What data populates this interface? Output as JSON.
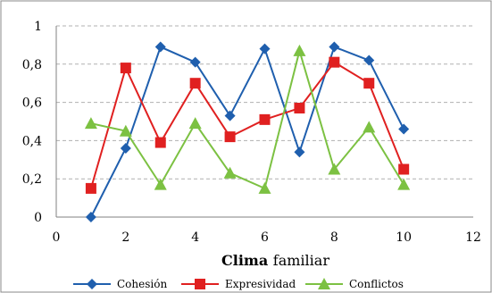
{
  "chart_data": {
    "type": "line",
    "xlabel_bold": "Clima",
    "xlabel_rest": "familiar",
    "xlim": [
      0,
      12
    ],
    "ylim": [
      0,
      1
    ],
    "xticks": [
      "0",
      "2",
      "4",
      "6",
      "8",
      "10",
      "12"
    ],
    "yticks": [
      "0",
      "0,2",
      "0,4",
      "0,6",
      "0,8",
      "1"
    ],
    "grid": true,
    "legend_position": "bottom",
    "series": [
      {
        "name": "Cohesión",
        "color": "#1f5fae",
        "marker": "diamond",
        "x": [
          1,
          2,
          3,
          4,
          5,
          6,
          7,
          8,
          9,
          10
        ],
        "y": [
          0.0,
          0.36,
          0.89,
          0.81,
          0.53,
          0.88,
          0.34,
          0.89,
          0.82,
          0.46
        ]
      },
      {
        "name": "Expresividad",
        "color": "#e02020",
        "marker": "square",
        "x": [
          1,
          2,
          3,
          4,
          5,
          6,
          7,
          8,
          9,
          10
        ],
        "y": [
          0.15,
          0.78,
          0.39,
          0.7,
          0.42,
          0.51,
          0.57,
          0.81,
          0.7,
          0.25
        ]
      },
      {
        "name": "Conflictos",
        "color": "#7cc142",
        "marker": "triangle",
        "x": [
          1,
          2,
          3,
          4,
          5,
          6,
          7,
          8,
          9,
          10
        ],
        "y": [
          0.49,
          0.45,
          0.17,
          0.49,
          0.23,
          0.15,
          0.87,
          0.25,
          0.47,
          0.17
        ]
      }
    ]
  }
}
